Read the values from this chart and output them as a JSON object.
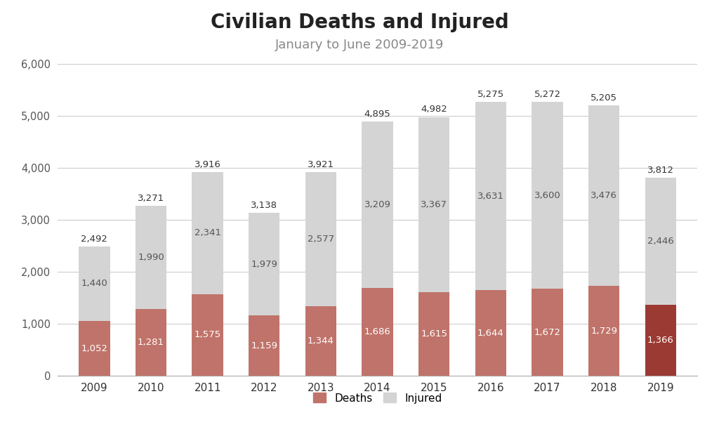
{
  "title": "Civilian Deaths and Injured",
  "subtitle": "January to June 2009-2019",
  "years": [
    2009,
    2010,
    2011,
    2012,
    2013,
    2014,
    2015,
    2016,
    2017,
    2018,
    2019
  ],
  "deaths": [
    1052,
    1281,
    1575,
    1159,
    1344,
    1686,
    1615,
    1644,
    1672,
    1729,
    1366
  ],
  "injured": [
    1440,
    1990,
    2341,
    1979,
    2577,
    3209,
    3367,
    3631,
    3600,
    3476,
    2446
  ],
  "totals": [
    2492,
    3271,
    3916,
    3138,
    3921,
    4895,
    4982,
    5275,
    5272,
    5205,
    3812
  ],
  "deaths_color": "#c0736a",
  "deaths_color_2019": "#9b3a33",
  "injured_color": "#d4d4d4",
  "background_color": "#ffffff",
  "ylim": [
    0,
    6000
  ],
  "yticks": [
    0,
    1000,
    2000,
    3000,
    4000,
    5000,
    6000
  ],
  "legend_deaths": "Deaths",
  "legend_injured": "Injured",
  "title_fontsize": 20,
  "subtitle_fontsize": 13,
  "label_fontsize": 9.5,
  "bar_width": 0.55
}
